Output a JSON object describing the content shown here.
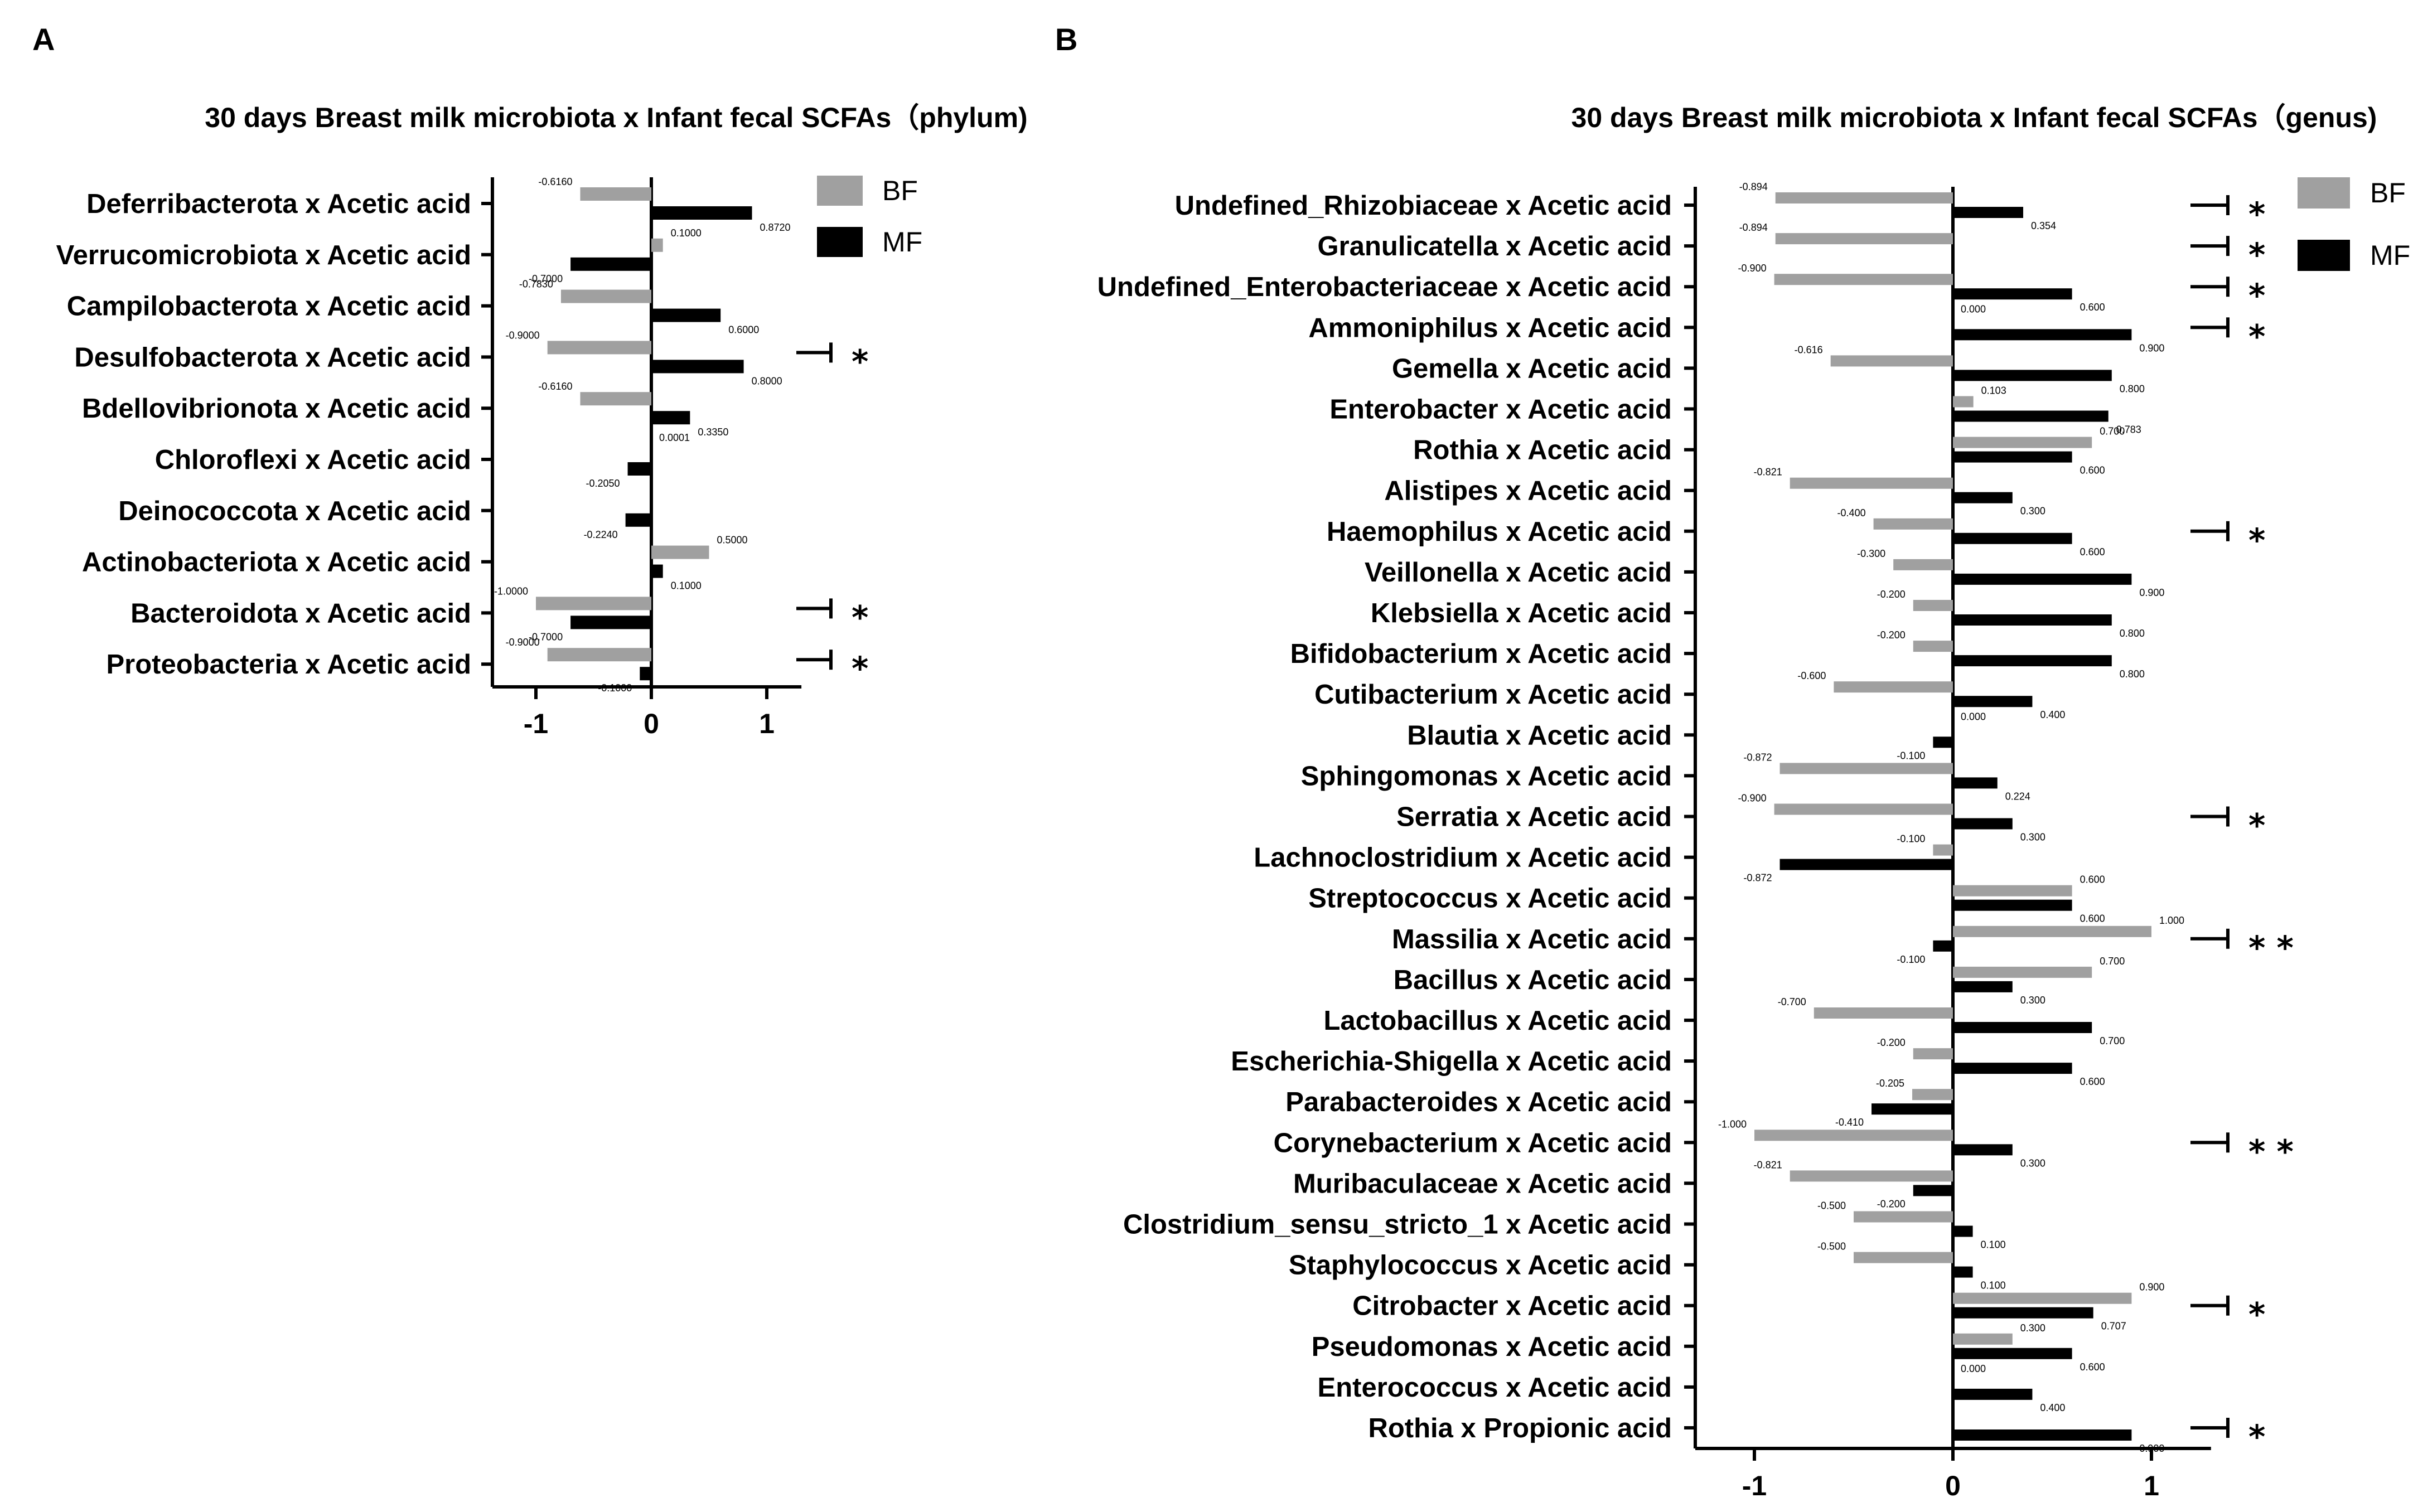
{
  "colors": {
    "BF": "#a0a0a0",
    "MF": "#000000",
    "axis": "#000000"
  },
  "chart_data": [
    {
      "panel": "A",
      "type": "bar",
      "orientation": "horizontal",
      "title": "30 days Breast milk microbiota x Infant fecal SCFAs（phylum)",
      "xlim": [
        -1.35,
        1.3
      ],
      "xticks": [
        "-1",
        "0",
        "1"
      ],
      "xtick_values": [
        -1,
        0,
        1
      ],
      "legend": {
        "position": "top-right",
        "entries": [
          "BF",
          "MF"
        ]
      },
      "categories": [
        "Deferribacterota x Acetic acid",
        "Verrucomicrobiota x Acetic acid",
        "Campilobacterota x Acetic acid",
        "Desulfobacterota x Acetic acid",
        "Bdellovibrionota x Acetic acid",
        "Chloroflexi x Acetic acid",
        "Deinococcota x Acetic acid",
        "Actinobacteriota x Acetic acid",
        "Bacteroidota x Acetic acid",
        "Proteobacteria x Acetic acid"
      ],
      "series": [
        {
          "name": "BF",
          "values": [
            -0.616,
            0.1,
            -0.783,
            -0.9,
            -0.616,
            0.0001,
            0,
            0.5,
            -1.0,
            -0.9
          ],
          "labels": [
            "-0.6160",
            "0.1000",
            "-0.7830",
            "-0.9000",
            "-0.6160",
            "0.0001",
            "",
            "0.5000",
            "-1.0000",
            "-0.9000"
          ]
        },
        {
          "name": "MF",
          "values": [
            0.872,
            -0.7,
            0.6,
            0.8,
            0.335,
            -0.205,
            -0.224,
            0.1,
            -0.7,
            -0.1
          ],
          "labels": [
            "0.8720",
            "-0.7000",
            "0.6000",
            "0.8000",
            "0.3350",
            "-0.2050",
            "-0.2240",
            "0.1000",
            "-0.7000",
            "-0.1000"
          ]
        }
      ],
      "significance": [
        "",
        "",
        "",
        "*",
        "",
        "",
        "",
        "",
        "*",
        "*"
      ]
    },
    {
      "panel": "B",
      "type": "bar",
      "orientation": "horizontal",
      "title": "30 days Breast milk microbiota x Infant fecal SCFAs（genus)",
      "xlim": [
        -1.3,
        1.3
      ],
      "xticks": [
        "-1",
        "0",
        "1"
      ],
      "xtick_values": [
        -1,
        0,
        1
      ],
      "legend": {
        "position": "top-right",
        "entries": [
          "BF",
          "MF"
        ]
      },
      "categories": [
        "Undefined_Rhizobiaceae x Acetic acid",
        "Granulicatella x Acetic acid",
        "Undefined_Enterobacteriaceae x Acetic acid",
        "Ammoniphilus x Acetic acid",
        "Gemella x Acetic acid",
        "Enterobacter x Acetic acid",
        "Rothia x Acetic acid",
        "Alistipes x Acetic acid",
        "Haemophilus x Acetic acid",
        "Veillonella x Acetic acid",
        "Klebsiella x Acetic acid",
        "Bifidobacterium x Acetic acid",
        "Cutibacterium x Acetic acid",
        "Blautia x Acetic acid",
        "Sphingomonas x Acetic acid",
        "Serratia x Acetic acid",
        "Lachnoclostridium x Acetic acid",
        "Streptococcus x Acetic acid",
        "Massilia x Acetic acid",
        "Bacillus x Acetic acid",
        "Lactobacillus x Acetic acid",
        "Escherichia-Shigella x Acetic acid",
        "Parabacteroides x Acetic acid",
        "Corynebacterium x Acetic acid",
        "Muribaculaceae x Acetic acid",
        "Clostridium_sensu_stricto_1 x Acetic acid",
        "Staphylococcus x Acetic acid",
        "Citrobacter x Acetic acid",
        "Pseudomonas x Acetic acid",
        "Enterococcus x Acetic acid",
        "Rothia x Propionic acid"
      ],
      "series": [
        {
          "name": "BF",
          "values": [
            -0.894,
            -0.894,
            -0.9,
            0,
            -0.616,
            0.103,
            0.7,
            -0.821,
            -0.4,
            -0.3,
            -0.2,
            -0.2,
            -0.6,
            0,
            -0.872,
            -0.9,
            -0.1,
            0.6,
            1.0,
            0.7,
            -0.7,
            -0.2,
            -0.205,
            -1.0,
            -0.821,
            -0.5,
            -0.5,
            0.9,
            0.3,
            0,
            0
          ],
          "labels": [
            "-0.894",
            "-0.894",
            "-0.900",
            "0.000",
            "-0.616",
            "0.103",
            "0.700",
            "-0.821",
            "-0.400",
            "-0.300",
            "-0.200",
            "-0.200",
            "-0.600",
            "0.000",
            "-0.872",
            "-0.900",
            "-0.100",
            "0.600",
            "1.000",
            "0.700",
            "-0.700",
            "-0.200",
            "-0.205",
            "-1.000",
            "-0.821",
            "-0.500",
            "-0.500",
            "0.900",
            "0.300",
            "0.000",
            ""
          ]
        },
        {
          "name": "MF",
          "values": [
            0.354,
            0,
            0.6,
            0.9,
            0.8,
            0.783,
            0.6,
            0.3,
            0.6,
            0.9,
            0.8,
            0.8,
            0.4,
            -0.1,
            0.224,
            0.3,
            -0.872,
            0.6,
            -0.1,
            0.3,
            0.7,
            0.6,
            -0.41,
            0.3,
            -0.2,
            0.1,
            0.1,
            0.707,
            0.6,
            0.4,
            0.9
          ],
          "labels": [
            "0.354",
            "",
            "0.600",
            "0.900",
            "0.800",
            "0.783",
            "0.600",
            "0.300",
            "0.600",
            "0.900",
            "0.800",
            "0.800",
            "0.400",
            "-0.100",
            "0.224",
            "0.300",
            "-0.872",
            "0.600",
            "-0.100",
            "0.300",
            "0.700",
            "0.600",
            "-0.410",
            "0.300",
            "-0.200",
            "0.100",
            "0.100",
            "0.707",
            "0.600",
            "0.400",
            "0.900"
          ]
        }
      ],
      "significance": [
        "*",
        "*",
        "*",
        "*",
        "",
        "",
        "",
        "",
        "*",
        "",
        "",
        "",
        "",
        "",
        "",
        "*",
        "",
        "",
        "* *",
        "",
        "",
        "",
        "",
        "* *",
        "",
        "",
        "",
        "*",
        "",
        "",
        "*"
      ]
    }
  ]
}
